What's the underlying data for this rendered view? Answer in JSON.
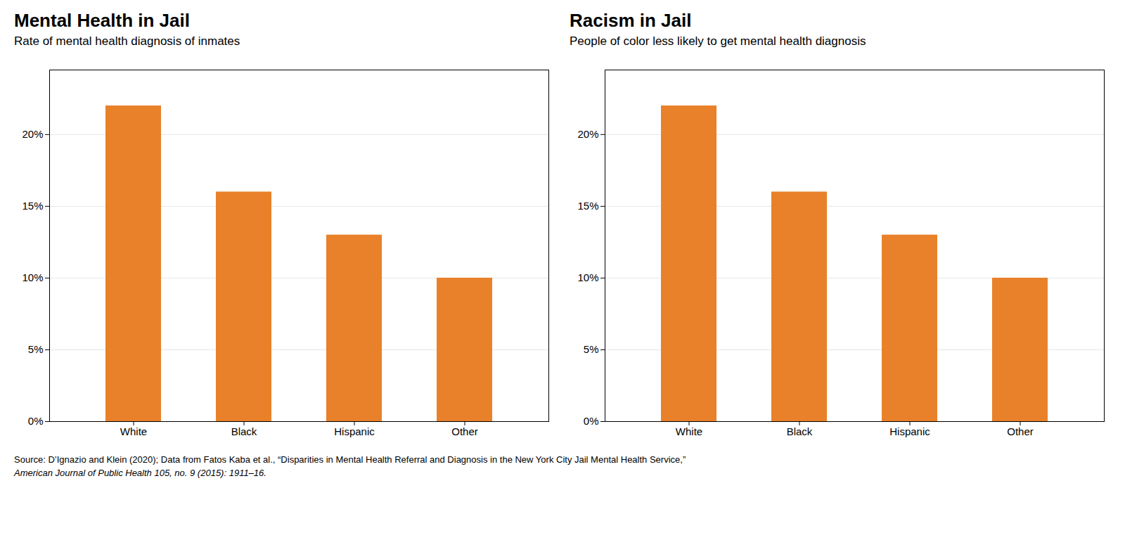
{
  "chart_data": [
    {
      "type": "bar",
      "title": "Mental Health in Jail",
      "subtitle": "Rate of mental health diagnosis of inmates",
      "categories": [
        "White",
        "Black",
        "Hispanic",
        "Other"
      ],
      "values": [
        0.22,
        0.16,
        0.13,
        0.1
      ],
      "color": "#E8812A",
      "ylim": [
        0,
        0.245
      ],
      "yticks": [
        {
          "value": 0.0,
          "label": "0%"
        },
        {
          "value": 0.05,
          "label": "5%"
        },
        {
          "value": 0.1,
          "label": "10%"
        },
        {
          "value": 0.15,
          "label": "15%"
        },
        {
          "value": 0.2,
          "label": "20%"
        }
      ],
      "grid": true
    },
    {
      "type": "bar",
      "title": "Racism in Jail",
      "subtitle": "People of color less likely to get mental health diagnosis",
      "categories": [
        "White",
        "Black",
        "Hispanic",
        "Other"
      ],
      "values": [
        0.22,
        0.16,
        0.13,
        0.1
      ],
      "color": "#E8812A",
      "ylim": [
        0,
        0.245
      ],
      "yticks": [
        {
          "value": 0.0,
          "label": "0%"
        },
        {
          "value": 0.05,
          "label": "5%"
        },
        {
          "value": 0.1,
          "label": "10%"
        },
        {
          "value": 0.15,
          "label": "15%"
        },
        {
          "value": 0.2,
          "label": "20%"
        }
      ],
      "grid": true
    }
  ],
  "caption": [
    "Source: D’Ignazio and Klein (2020); Data from Fatos Kaba et al., “Disparities in Mental Health Referral and Diagnosis in the New York City Jail Mental Health Service,”",
    "American Journal of Public Health 105, no. 9 (2015): 1911–16."
  ]
}
